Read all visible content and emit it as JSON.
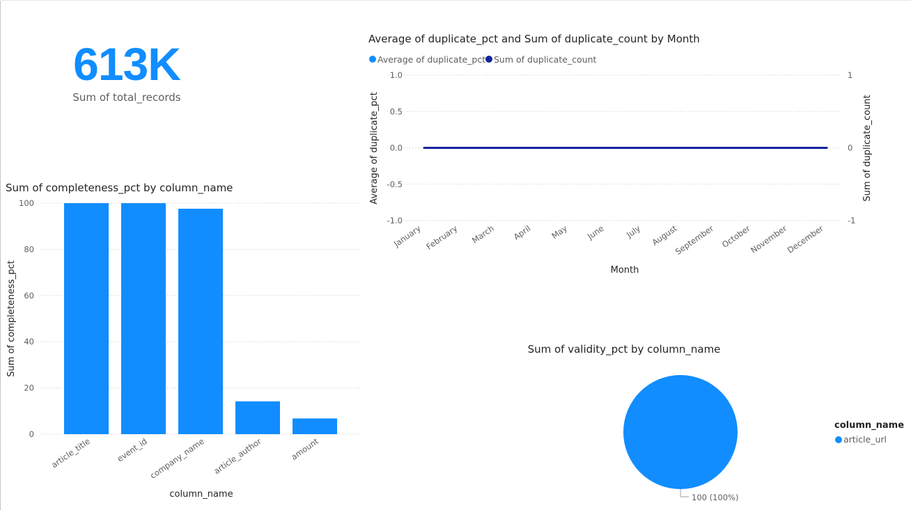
{
  "card": {
    "value": "613K",
    "label": "Sum of total_records",
    "color": "#118DFF"
  },
  "chart_data": [
    {
      "type": "bar",
      "title": "Sum of completeness_pct by column_name",
      "xlabel": "column_name",
      "ylabel": "Sum of completeness_pct",
      "categories": [
        "article_title",
        "event_id",
        "company_name",
        "article_author",
        "amount"
      ],
      "values": [
        100,
        100,
        97.6,
        14.2,
        6.8
      ],
      "ylim": [
        0,
        100
      ],
      "yticks": [
        "0",
        "20",
        "40",
        "60",
        "80",
        "100"
      ],
      "grid": true,
      "color": "#118DFF"
    },
    {
      "type": "line",
      "title": "Average of duplicate_pct and Sum of duplicate_count by Month",
      "xlabel": "Month",
      "ylabel": "Average of duplicate_pct",
      "y2label": "Sum of duplicate_count",
      "categories": [
        "January",
        "February",
        "March",
        "April",
        "May",
        "June",
        "July",
        "August",
        "September",
        "October",
        "November",
        "December"
      ],
      "series": [
        {
          "name": "Average of duplicate_pct",
          "values": [
            0,
            0,
            0,
            0,
            0,
            0,
            0,
            0,
            0,
            0,
            0,
            0
          ],
          "color": "#118DFF"
        },
        {
          "name": "Sum of duplicate_count",
          "values": [
            0,
            0,
            0,
            0,
            0,
            0,
            0,
            0,
            0,
            0,
            0,
            0
          ],
          "color": "#12239E"
        }
      ],
      "ylim": [
        -1,
        1
      ],
      "yticks": [
        "1.0",
        "0.5",
        "0.0",
        "-0.5",
        "-1.0"
      ],
      "y2lim": [
        -1,
        1
      ],
      "y2ticks": [
        "1",
        "0",
        "-1"
      ],
      "legend": "top-left",
      "grid": true
    },
    {
      "type": "pie",
      "title": "Sum of validity_pct by column_name",
      "labels": [
        "article_url"
      ],
      "values": [
        100
      ],
      "data_labels": [
        "100 (100%)"
      ],
      "legend_title": "column_name",
      "legend": "right",
      "color": "#118DFF"
    }
  ]
}
